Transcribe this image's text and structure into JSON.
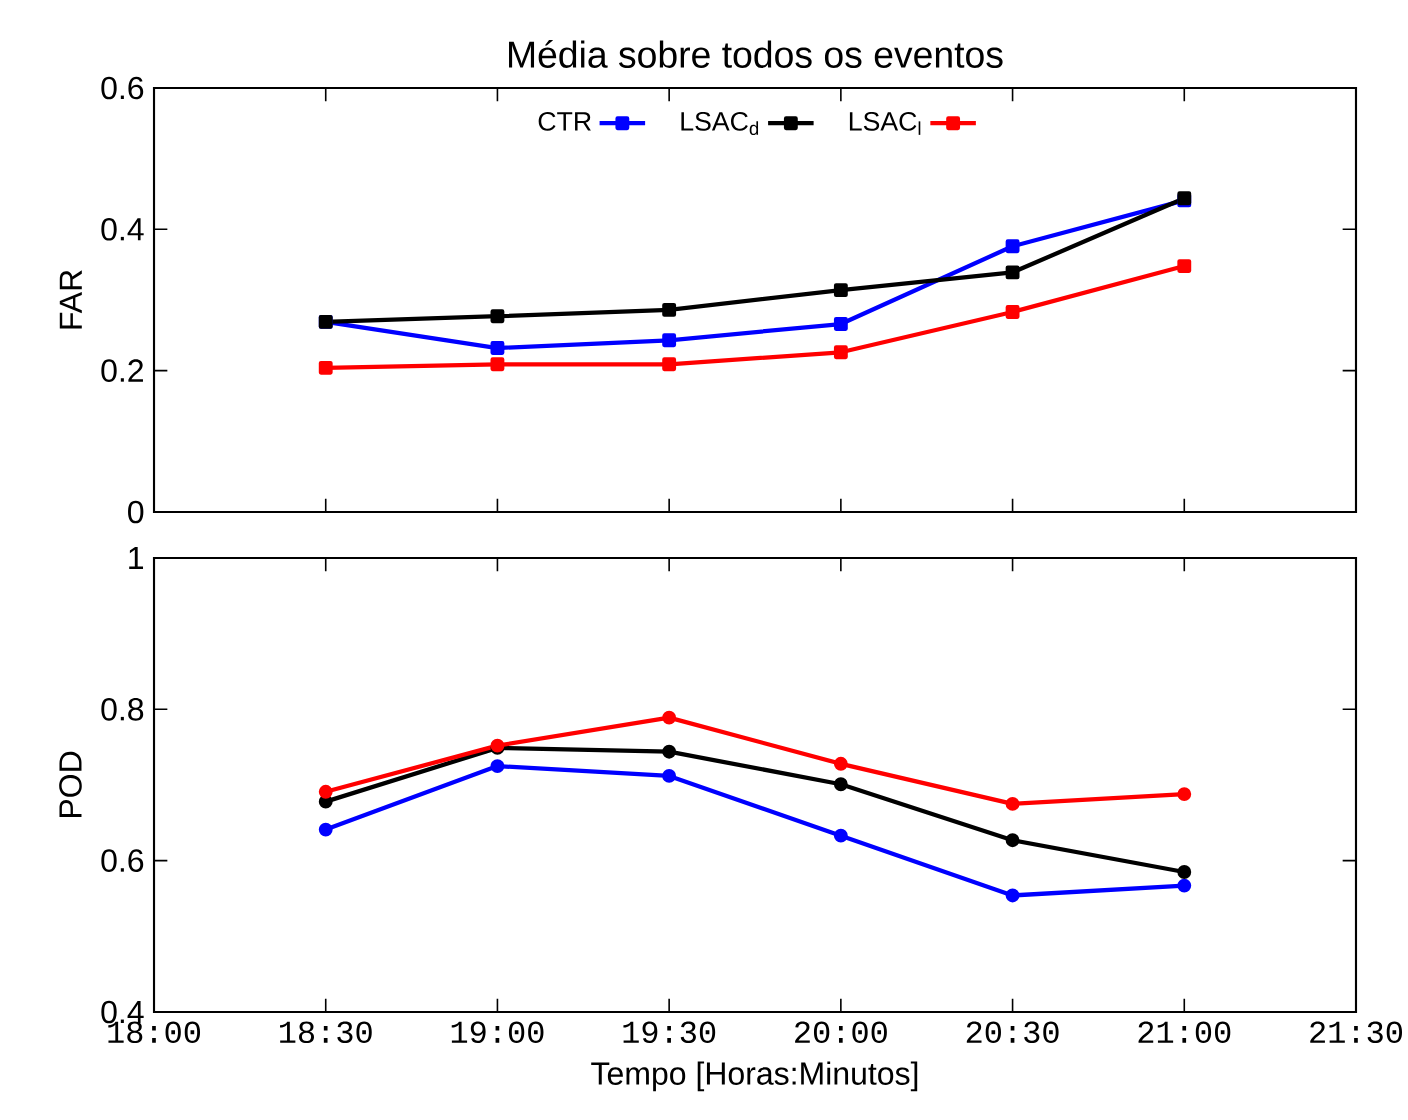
{
  "chart_data": [
    {
      "type": "line",
      "title": "Média sobre todos os eventos",
      "ylabel": "FAR",
      "x": [
        18.5,
        19,
        19.5,
        20,
        20.5,
        21
      ],
      "xlim": [
        18,
        21.5
      ],
      "xticks": [
        {
          "value": 18,
          "label": null
        },
        {
          "value": 18.5,
          "label": null
        },
        {
          "value": 19,
          "label": null
        },
        {
          "value": 19.5,
          "label": null
        },
        {
          "value": 20,
          "label": null
        },
        {
          "value": 20.5,
          "label": null
        },
        {
          "value": 21,
          "label": null
        },
        {
          "value": 21.5,
          "label": null
        }
      ],
      "ylim": [
        0,
        0.6
      ],
      "yticks": [
        0,
        0.2,
        0.4,
        0.6
      ],
      "tick_labels": "y",
      "legend": "top",
      "marker": "square",
      "grid": false,
      "series": [
        {
          "name": "CTR",
          "color": "#0000ff",
          "values": [
            0.269,
            0.232,
            0.243,
            0.266,
            0.376,
            0.441
          ]
        },
        {
          "name": "LSAC$_{d}$",
          "color": "#000000",
          "values": [
            0.269,
            0.277,
            0.286,
            0.314,
            0.339,
            0.444
          ]
        },
        {
          "name": "LSAC$_{l}$",
          "color": "#ff0000",
          "values": [
            0.204,
            0.209,
            0.209,
            0.226,
            0.283,
            0.348
          ]
        }
      ]
    },
    {
      "type": "line",
      "xlabel": "Tempo [Horas:Minutos]",
      "ylabel": "POD",
      "x": [
        18.5,
        19,
        19.5,
        20,
        20.5,
        21
      ],
      "xlim": [
        18,
        21.5
      ],
      "xticks": [
        {
          "value": 18,
          "label": "18:00"
        },
        {
          "value": 18.5,
          "label": "18:30"
        },
        {
          "value": 19,
          "label": "19:00"
        },
        {
          "value": 19.5,
          "label": "19:30"
        },
        {
          "value": 20,
          "label": "20:00"
        },
        {
          "value": 20.5,
          "label": "20:30"
        },
        {
          "value": 21,
          "label": "21:00"
        },
        {
          "value": 21.5,
          "label": "21:30"
        }
      ],
      "ylim": [
        0.4,
        1
      ],
      "yticks": [
        0.4,
        0.6,
        0.8,
        1
      ],
      "marker": "circle",
      "grid": false,
      "series": [
        {
          "color": "#0000ff",
          "values": [
            0.641,
            0.725,
            0.712,
            0.633,
            0.554,
            0.567
          ]
        },
        {
          "color": "#000000",
          "values": [
            0.678,
            0.749,
            0.744,
            0.701,
            0.627,
            0.585
          ]
        },
        {
          "color": "#ff0000",
          "values": [
            0.691,
            0.752,
            0.789,
            0.728,
            0.675,
            0.688
          ]
        }
      ]
    }
  ]
}
